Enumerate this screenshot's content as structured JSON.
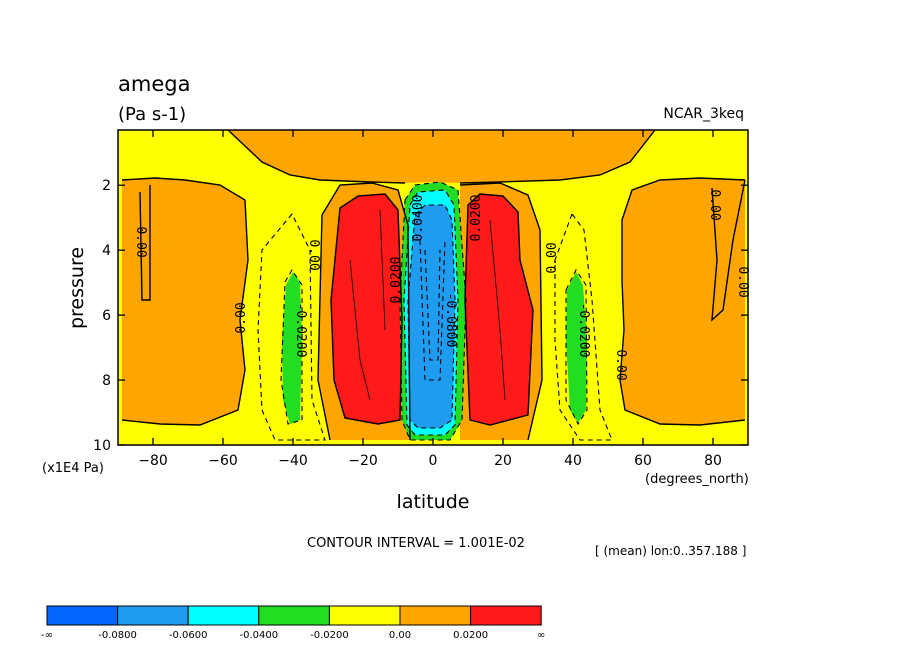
{
  "chart_data": {
    "type": "contour",
    "title": "amega",
    "units_label": "(Pa s-1)",
    "dataset": "NCAR_3keq",
    "xlabel": "latitude",
    "xunits": "(degrees_north)",
    "ylabel": "pressure",
    "yunits": "(x1E4 Pa)",
    "xlim": [
      -90,
      90
    ],
    "ylim": [
      10,
      0.3
    ],
    "x_ticks": [
      -80,
      -60,
      -40,
      -20,
      0,
      20,
      40,
      60,
      80
    ],
    "x_tick_labels": [
      "−80",
      "−60",
      "−40",
      "−20",
      "0",
      "20",
      "40",
      "60",
      "80"
    ],
    "y_ticks": [
      2,
      4,
      6,
      8,
      10
    ],
    "y_tick_labels": [
      "2",
      "4",
      "6",
      "8",
      "10"
    ],
    "contour_interval_text": "CONTOUR INTERVAL = 1.001E-02",
    "mean_info": "[ (mean) lon:0..357.188 ]",
    "contour_labels": [
      "0.00",
      "0.00",
      "0.00",
      "-0.0200",
      "0.0200",
      "0.0400",
      "-0.0800",
      "0.0200",
      "0.00",
      "-0.0200",
      "0.00",
      "0.00",
      "0.00"
    ],
    "colorbar": {
      "colors": [
        "#0066ff",
        "#1f9cf0",
        "#00ffff",
        "#22dd22",
        "#ffff00",
        "#ffa500",
        "#ff1a1a"
      ],
      "labels": [
        "-∞",
        "-0.0800",
        "-0.0600",
        "-0.0400",
        "-0.0200",
        "0.00",
        "0.0200",
        "∞"
      ]
    },
    "regions": [
      {
        "level": "0.00 to 0.02",
        "color": "#ffa500",
        "desc": "upper troposphere near equator and subtropics"
      },
      {
        "level": "> 0.02",
        "color": "#ff1a1a",
        "lat_range": [
          -30,
          -10
        ]
      },
      {
        "level": "> 0.02",
        "color": "#ff1a1a",
        "lat_range": [
          10,
          28
        ]
      },
      {
        "level": "< -0.04",
        "color": "#1f9cf0",
        "lat_range": [
          -7,
          7
        ]
      },
      {
        "level": "0.00 to 0.02",
        "color": "#ffa500",
        "lat_range": [
          -90,
          -50
        ]
      },
      {
        "level": "0.00 to 0.02",
        "color": "#ffa500",
        "lat_range": [
          55,
          90
        ]
      },
      {
        "level": "-0.04 to -0.02",
        "color": "#22dd22",
        "lat_range": [
          -44,
          -37
        ]
      },
      {
        "level": "-0.04 to -0.02",
        "color": "#22dd22",
        "lat_range": [
          38,
          44
        ]
      }
    ]
  }
}
